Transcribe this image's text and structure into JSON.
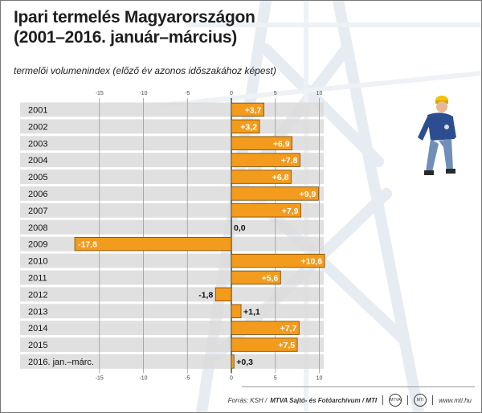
{
  "header": {
    "title_line1": "Ipari termelés Magyarországon",
    "title_line2": "(2001–2016. január–március)",
    "subtitle": "termelői volumenindex (előző év azonos időszakához képest)"
  },
  "footer": {
    "source_prefix": "Forrás: KSH /",
    "source_bold": "MTVA Sajtó- és Fotóarchívum / MTI",
    "website": "www.mti.hu",
    "logo1": "MTVA",
    "logo2": "MTI"
  },
  "colors": {
    "bar": "#f29b1d",
    "bar_border": "#7a4a00",
    "row_band": "#dadada",
    "axis": "#222222"
  },
  "chart_data": {
    "type": "bar",
    "orientation": "horizontal",
    "categories": [
      "2001",
      "2002",
      "2003",
      "2004",
      "2005",
      "2006",
      "2007",
      "2008",
      "2009",
      "2010",
      "2011",
      "2012",
      "2013",
      "2014",
      "2015",
      "2016. jan.–márc."
    ],
    "values": [
      3.7,
      3.2,
      6.9,
      7.8,
      6.8,
      9.9,
      7.9,
      0.0,
      -17.8,
      10.6,
      5.6,
      -1.8,
      1.1,
      7.7,
      7.5,
      0.3
    ],
    "value_labels": [
      "+3,7",
      "+3,2",
      "+6,9",
      "+7,8",
      "+6,8",
      "+9,9",
      "+7,9",
      "0,0",
      "-17,8",
      "+10,6",
      "+5,6",
      "-1,8",
      "+1,1",
      "+7,7",
      "+7,5",
      "+0,3"
    ],
    "xlim": [
      -18.5,
      11.5
    ],
    "ticks": [
      -15,
      -10,
      -5,
      0,
      5,
      10
    ],
    "tick_labels": [
      "-15",
      "-10",
      "-5",
      "0",
      "5",
      "10"
    ],
    "grid": true
  }
}
